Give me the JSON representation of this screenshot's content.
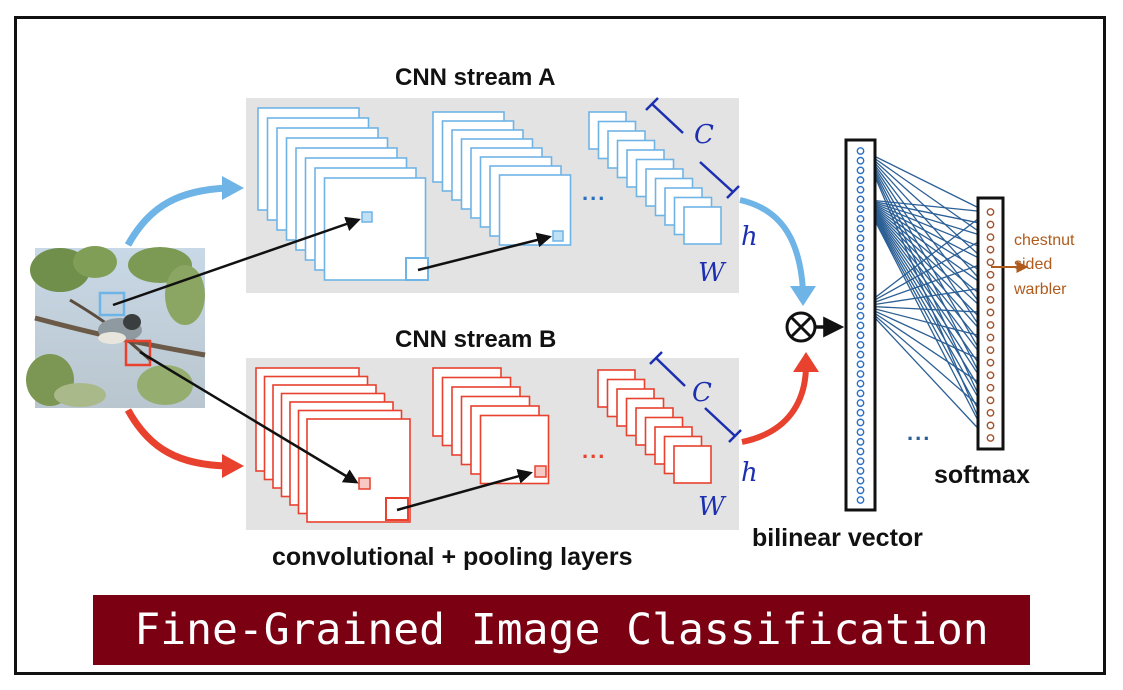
{
  "stream_a": {
    "title": "CNN stream A",
    "color": "#6fb4e6"
  },
  "stream_b": {
    "title": "CNN stream B",
    "color": "#e8412e"
  },
  "layers_label": "convolutional + pooling layers",
  "bilinear_label": "bilinear vector",
  "softmax_label": "softmax",
  "class_label": [
    "chestnut",
    "sided",
    "warbler"
  ],
  "annotations": {
    "c_a": "C",
    "h_a": "h",
    "w_a": "W",
    "c_b": "C",
    "h_b": "h",
    "w_b": "W"
  },
  "ellipsis": "...",
  "operator": "⊗",
  "banner": {
    "text": "Fine-Grained Image Classification",
    "color": "#7a0012"
  },
  "colors": {
    "accent_blue": "#6fb4e6",
    "accent_red": "#e8412e",
    "network_line": "#2b5f95",
    "output_node": "#a0522d",
    "panel": "#e3e3e3"
  },
  "nodes": {
    "bilinear_count": 37,
    "softmax_count": 19
  }
}
